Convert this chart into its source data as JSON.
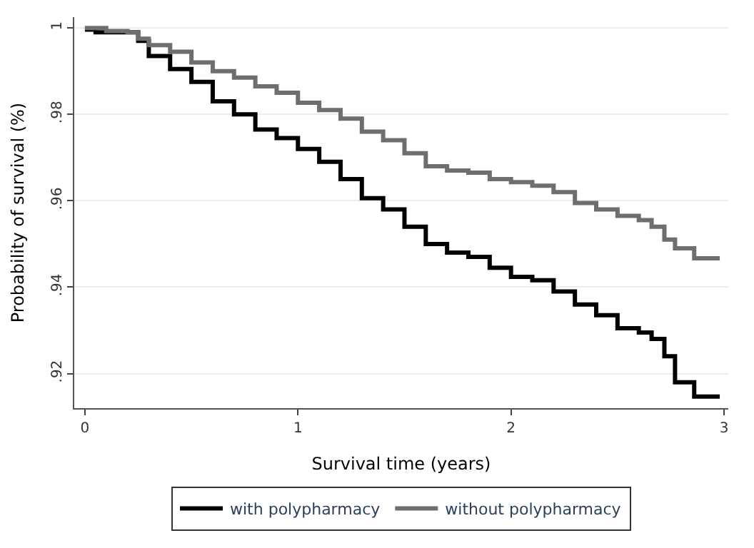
{
  "chart_data": {
    "type": "step",
    "xlabel": "Survival time (years)",
    "ylabel": "Probability of survival (%)",
    "xlim": [
      -0.05,
      3.02
    ],
    "xticks": [
      0,
      1,
      2,
      3
    ],
    "ylim": [
      0.912,
      1.0025
    ],
    "yticks": [
      {
        "value": 0.92,
        "label": ".92"
      },
      {
        "value": 0.94,
        "label": ".94"
      },
      {
        "value": 0.96,
        "label": ".96"
      },
      {
        "value": 0.98,
        "label": ".98"
      },
      1
    ],
    "grid": "y",
    "legend": "bottom",
    "marker": "none",
    "line_style": "solid",
    "series": [
      {
        "name": "with polypharmacy",
        "color": "#000000",
        "x": [
          0,
          0.05,
          0.2,
          0.25,
          0.3,
          0.4,
          0.5,
          0.6,
          0.7,
          0.8,
          0.9,
          1.0,
          1.1,
          1.2,
          1.3,
          1.4,
          1.5,
          1.6,
          1.7,
          1.8,
          1.9,
          2.0,
          2.1,
          2.2,
          2.3,
          2.4,
          2.5,
          2.6,
          2.66,
          2.72,
          2.77,
          2.86,
          2.98
        ],
        "values": [
          0.9996,
          0.999,
          0.999,
          0.997,
          0.9935,
          0.9905,
          0.9875,
          0.983,
          0.98,
          0.9765,
          0.9745,
          0.972,
          0.969,
          0.965,
          0.9606,
          0.958,
          0.954,
          0.95,
          0.948,
          0.947,
          0.9445,
          0.9424,
          0.9416,
          0.939,
          0.936,
          0.9335,
          0.9305,
          0.9295,
          0.928,
          0.924,
          0.918,
          0.9147,
          0.9147
        ]
      },
      {
        "name": "without polypharmacy",
        "color": "#6e6e6e",
        "x": [
          0,
          0.1,
          0.2,
          0.25,
          0.3,
          0.4,
          0.5,
          0.6,
          0.7,
          0.8,
          0.9,
          1.0,
          1.1,
          1.2,
          1.3,
          1.4,
          1.5,
          1.6,
          1.7,
          1.8,
          1.9,
          2.0,
          2.1,
          2.2,
          2.3,
          2.4,
          2.5,
          2.6,
          2.66,
          2.72,
          2.77,
          2.86,
          2.98
        ],
        "values": [
          1.0,
          0.9993,
          0.999,
          0.9975,
          0.996,
          0.9945,
          0.992,
          0.99,
          0.9885,
          0.9865,
          0.985,
          0.9827,
          0.981,
          0.979,
          0.976,
          0.974,
          0.971,
          0.968,
          0.967,
          0.9665,
          0.965,
          0.9643,
          0.9635,
          0.962,
          0.9595,
          0.958,
          0.9565,
          0.9555,
          0.954,
          0.951,
          0.949,
          0.9467,
          0.9467
        ]
      }
    ]
  }
}
